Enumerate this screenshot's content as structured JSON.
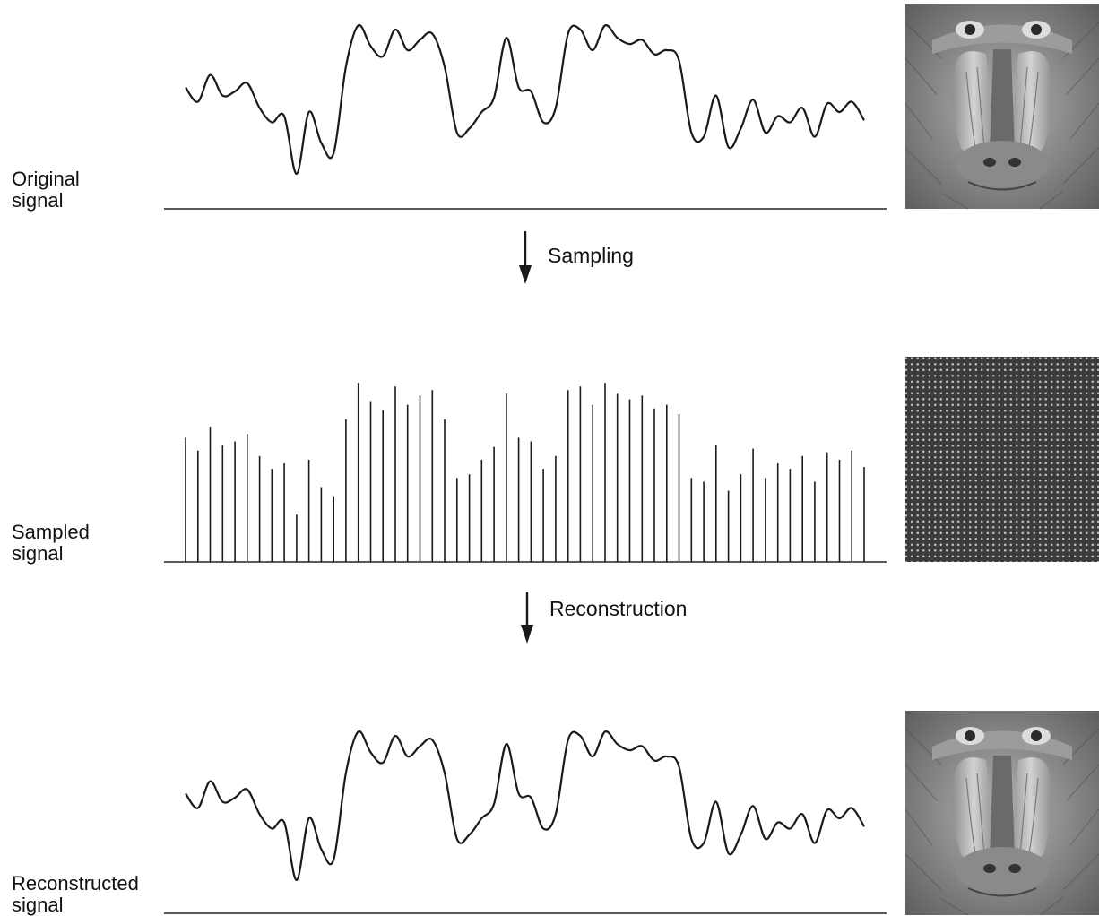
{
  "panels": [
    {
      "key": "original",
      "label_line1": "Original",
      "label_line2": "signal",
      "kind": "curve"
    },
    {
      "key": "sampled",
      "label_line1": "Sampled",
      "label_line2": "signal",
      "kind": "samples"
    },
    {
      "key": "reconstructed",
      "label_line1": "Reconstructed",
      "label_line2": "signal",
      "kind": "curve"
    }
  ],
  "steps": [
    {
      "key": "sampling",
      "label": "Sampling"
    },
    {
      "key": "reconstruction",
      "label": "Reconstruction"
    }
  ],
  "images": [
    {
      "key": "original",
      "depicts": "mandrill-face"
    },
    {
      "key": "sampled",
      "depicts": "sampled-grid"
    },
    {
      "key": "reconstructed",
      "depicts": "mandrill-face"
    }
  ],
  "signal": {
    "values": [
      0.62,
      0.55,
      0.68,
      0.58,
      0.6,
      0.64,
      0.52,
      0.45,
      0.48,
      0.2,
      0.5,
      0.35,
      0.3,
      0.72,
      0.92,
      0.82,
      0.77,
      0.9,
      0.8,
      0.85,
      0.88,
      0.72,
      0.4,
      0.42,
      0.5,
      0.57,
      0.86,
      0.62,
      0.6,
      0.45,
      0.52,
      0.88,
      0.9,
      0.8,
      0.92,
      0.86,
      0.83,
      0.85,
      0.78,
      0.8,
      0.75,
      0.4,
      0.38,
      0.58,
      0.33,
      0.42,
      0.56,
      0.4,
      0.48,
      0.45,
      0.52,
      0.38,
      0.54,
      0.5,
      0.55,
      0.46
    ]
  }
}
